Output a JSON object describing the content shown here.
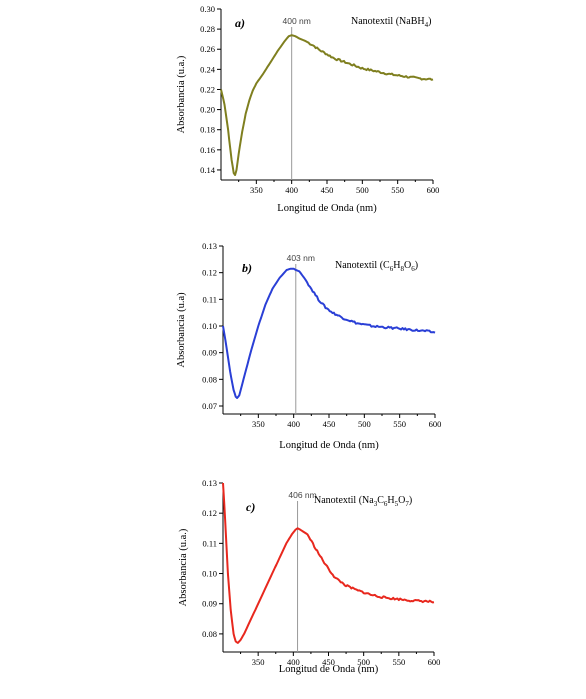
{
  "chart_data": [
    {
      "type": "line",
      "panel_label": "a)",
      "legend": "Nanotextil (NaBH4)",
      "legend_parts": [
        [
          "Nanotextil (NaBH",
          ""
        ],
        [
          "4",
          "sub"
        ],
        [
          ")",
          ""
        ]
      ],
      "color": "#7f7f1f",
      "xlabel": "Longitud de Onda (nm)",
      "ylabel": "Absorbancia (u.a.)",
      "xlim": [
        300,
        600
      ],
      "ylim": [
        0.13,
        0.3
      ],
      "xticks": [
        350,
        400,
        450,
        500,
        550,
        600
      ],
      "yticks": [
        0.14,
        0.16,
        0.18,
        0.2,
        0.22,
        0.24,
        0.26,
        0.28,
        0.3
      ],
      "ytick_labels": [
        "0.14",
        "0.16",
        "0.18",
        "0.20",
        "0.22",
        "0.24",
        "0.26",
        "0.28",
        "0.30"
      ],
      "peak_x": 400,
      "peak_label": "400 nm",
      "x": [
        300,
        305,
        310,
        315,
        318,
        320,
        322,
        325,
        330,
        335,
        340,
        345,
        350,
        360,
        370,
        380,
        390,
        396,
        400,
        405,
        410,
        420,
        430,
        440,
        450,
        460,
        480,
        500,
        520,
        540,
        560,
        580,
        600
      ],
      "y": [
        0.22,
        0.205,
        0.18,
        0.15,
        0.137,
        0.135,
        0.14,
        0.156,
        0.178,
        0.196,
        0.209,
        0.219,
        0.226,
        0.236,
        0.247,
        0.258,
        0.268,
        0.273,
        0.274,
        0.273,
        0.271,
        0.268,
        0.264,
        0.259,
        0.255,
        0.251,
        0.246,
        0.241,
        0.238,
        0.235,
        0.233,
        0.231,
        0.23
      ]
    },
    {
      "type": "line",
      "panel_label": "b)",
      "legend": "Nanotextil (C6H8O6)",
      "legend_parts": [
        [
          "Nanotextil (C",
          ""
        ],
        [
          "6",
          "sub"
        ],
        [
          "H",
          ""
        ],
        [
          "8",
          "sub"
        ],
        [
          "O",
          ""
        ],
        [
          "6",
          "sub"
        ],
        [
          ")",
          ""
        ]
      ],
      "color": "#2a3fd6",
      "xlabel": "Longitud de Onda (nm)",
      "ylabel": "Absorbancia (u.a)",
      "xlim": [
        300,
        600
      ],
      "ylim": [
        0.067,
        0.13
      ],
      "xticks": [
        350,
        400,
        450,
        500,
        550,
        600
      ],
      "yticks": [
        0.07,
        0.08,
        0.09,
        0.1,
        0.11,
        0.12,
        0.13
      ],
      "ytick_labels": [
        "0.07",
        "0.08",
        "0.09",
        "0.10",
        "0.11",
        "0.12",
        "0.13"
      ],
      "peak_x": 403,
      "peak_label": "403 nm",
      "x": [
        300,
        305,
        310,
        315,
        318,
        320,
        323,
        327,
        333,
        340,
        350,
        360,
        370,
        380,
        390,
        396,
        400,
        403,
        408,
        415,
        425,
        435,
        445,
        455,
        470,
        490,
        510,
        530,
        550,
        570,
        590,
        600
      ],
      "y": [
        0.1,
        0.092,
        0.083,
        0.076,
        0.0735,
        0.073,
        0.074,
        0.078,
        0.084,
        0.091,
        0.1,
        0.108,
        0.114,
        0.118,
        0.121,
        0.1215,
        0.1215,
        0.121,
        0.1205,
        0.118,
        0.114,
        0.11,
        0.107,
        0.105,
        0.103,
        0.101,
        0.1,
        0.0995,
        0.099,
        0.0985,
        0.098,
        0.0975
      ]
    },
    {
      "type": "line",
      "panel_label": "c)",
      "legend": "Nanotextil (Na3C6H5O7)",
      "legend_parts": [
        [
          "Nanotextil (Na",
          ""
        ],
        [
          "3",
          "sub"
        ],
        [
          "C",
          ""
        ],
        [
          "6",
          "sub"
        ],
        [
          "H",
          ""
        ],
        [
          "5",
          "sub"
        ],
        [
          "O",
          ""
        ],
        [
          "7",
          "sub"
        ],
        [
          ")",
          ""
        ]
      ],
      "color": "#e8281e",
      "xlabel": "Longitud de Onda (nm)",
      "ylabel": "Absorbancia (u.a.)",
      "xlim": [
        300,
        600
      ],
      "ylim": [
        0.074,
        0.13
      ],
      "xticks": [
        350,
        400,
        450,
        500,
        550,
        600
      ],
      "yticks": [
        0.08,
        0.09,
        0.1,
        0.11,
        0.12,
        0.13
      ],
      "ytick_labels": [
        "0.08",
        "0.09",
        "0.10",
        "0.11",
        "0.12",
        "0.13"
      ],
      "peak_x": 406,
      "peak_label": "406 nm",
      "x": [
        300,
        303,
        307,
        311,
        315,
        318,
        321,
        325,
        330,
        340,
        350,
        360,
        370,
        380,
        390,
        398,
        403,
        406,
        410,
        420,
        430,
        440,
        450,
        460,
        475,
        490,
        510,
        530,
        550,
        570,
        590,
        600
      ],
      "y": [
        0.13,
        0.118,
        0.1,
        0.088,
        0.08,
        0.0775,
        0.077,
        0.078,
        0.08,
        0.085,
        0.09,
        0.095,
        0.1,
        0.105,
        0.11,
        0.113,
        0.1145,
        0.115,
        0.1145,
        0.113,
        0.109,
        0.105,
        0.1015,
        0.0985,
        0.096,
        0.0945,
        0.093,
        0.092,
        0.0915,
        0.091,
        0.0908,
        0.0905
      ]
    }
  ]
}
